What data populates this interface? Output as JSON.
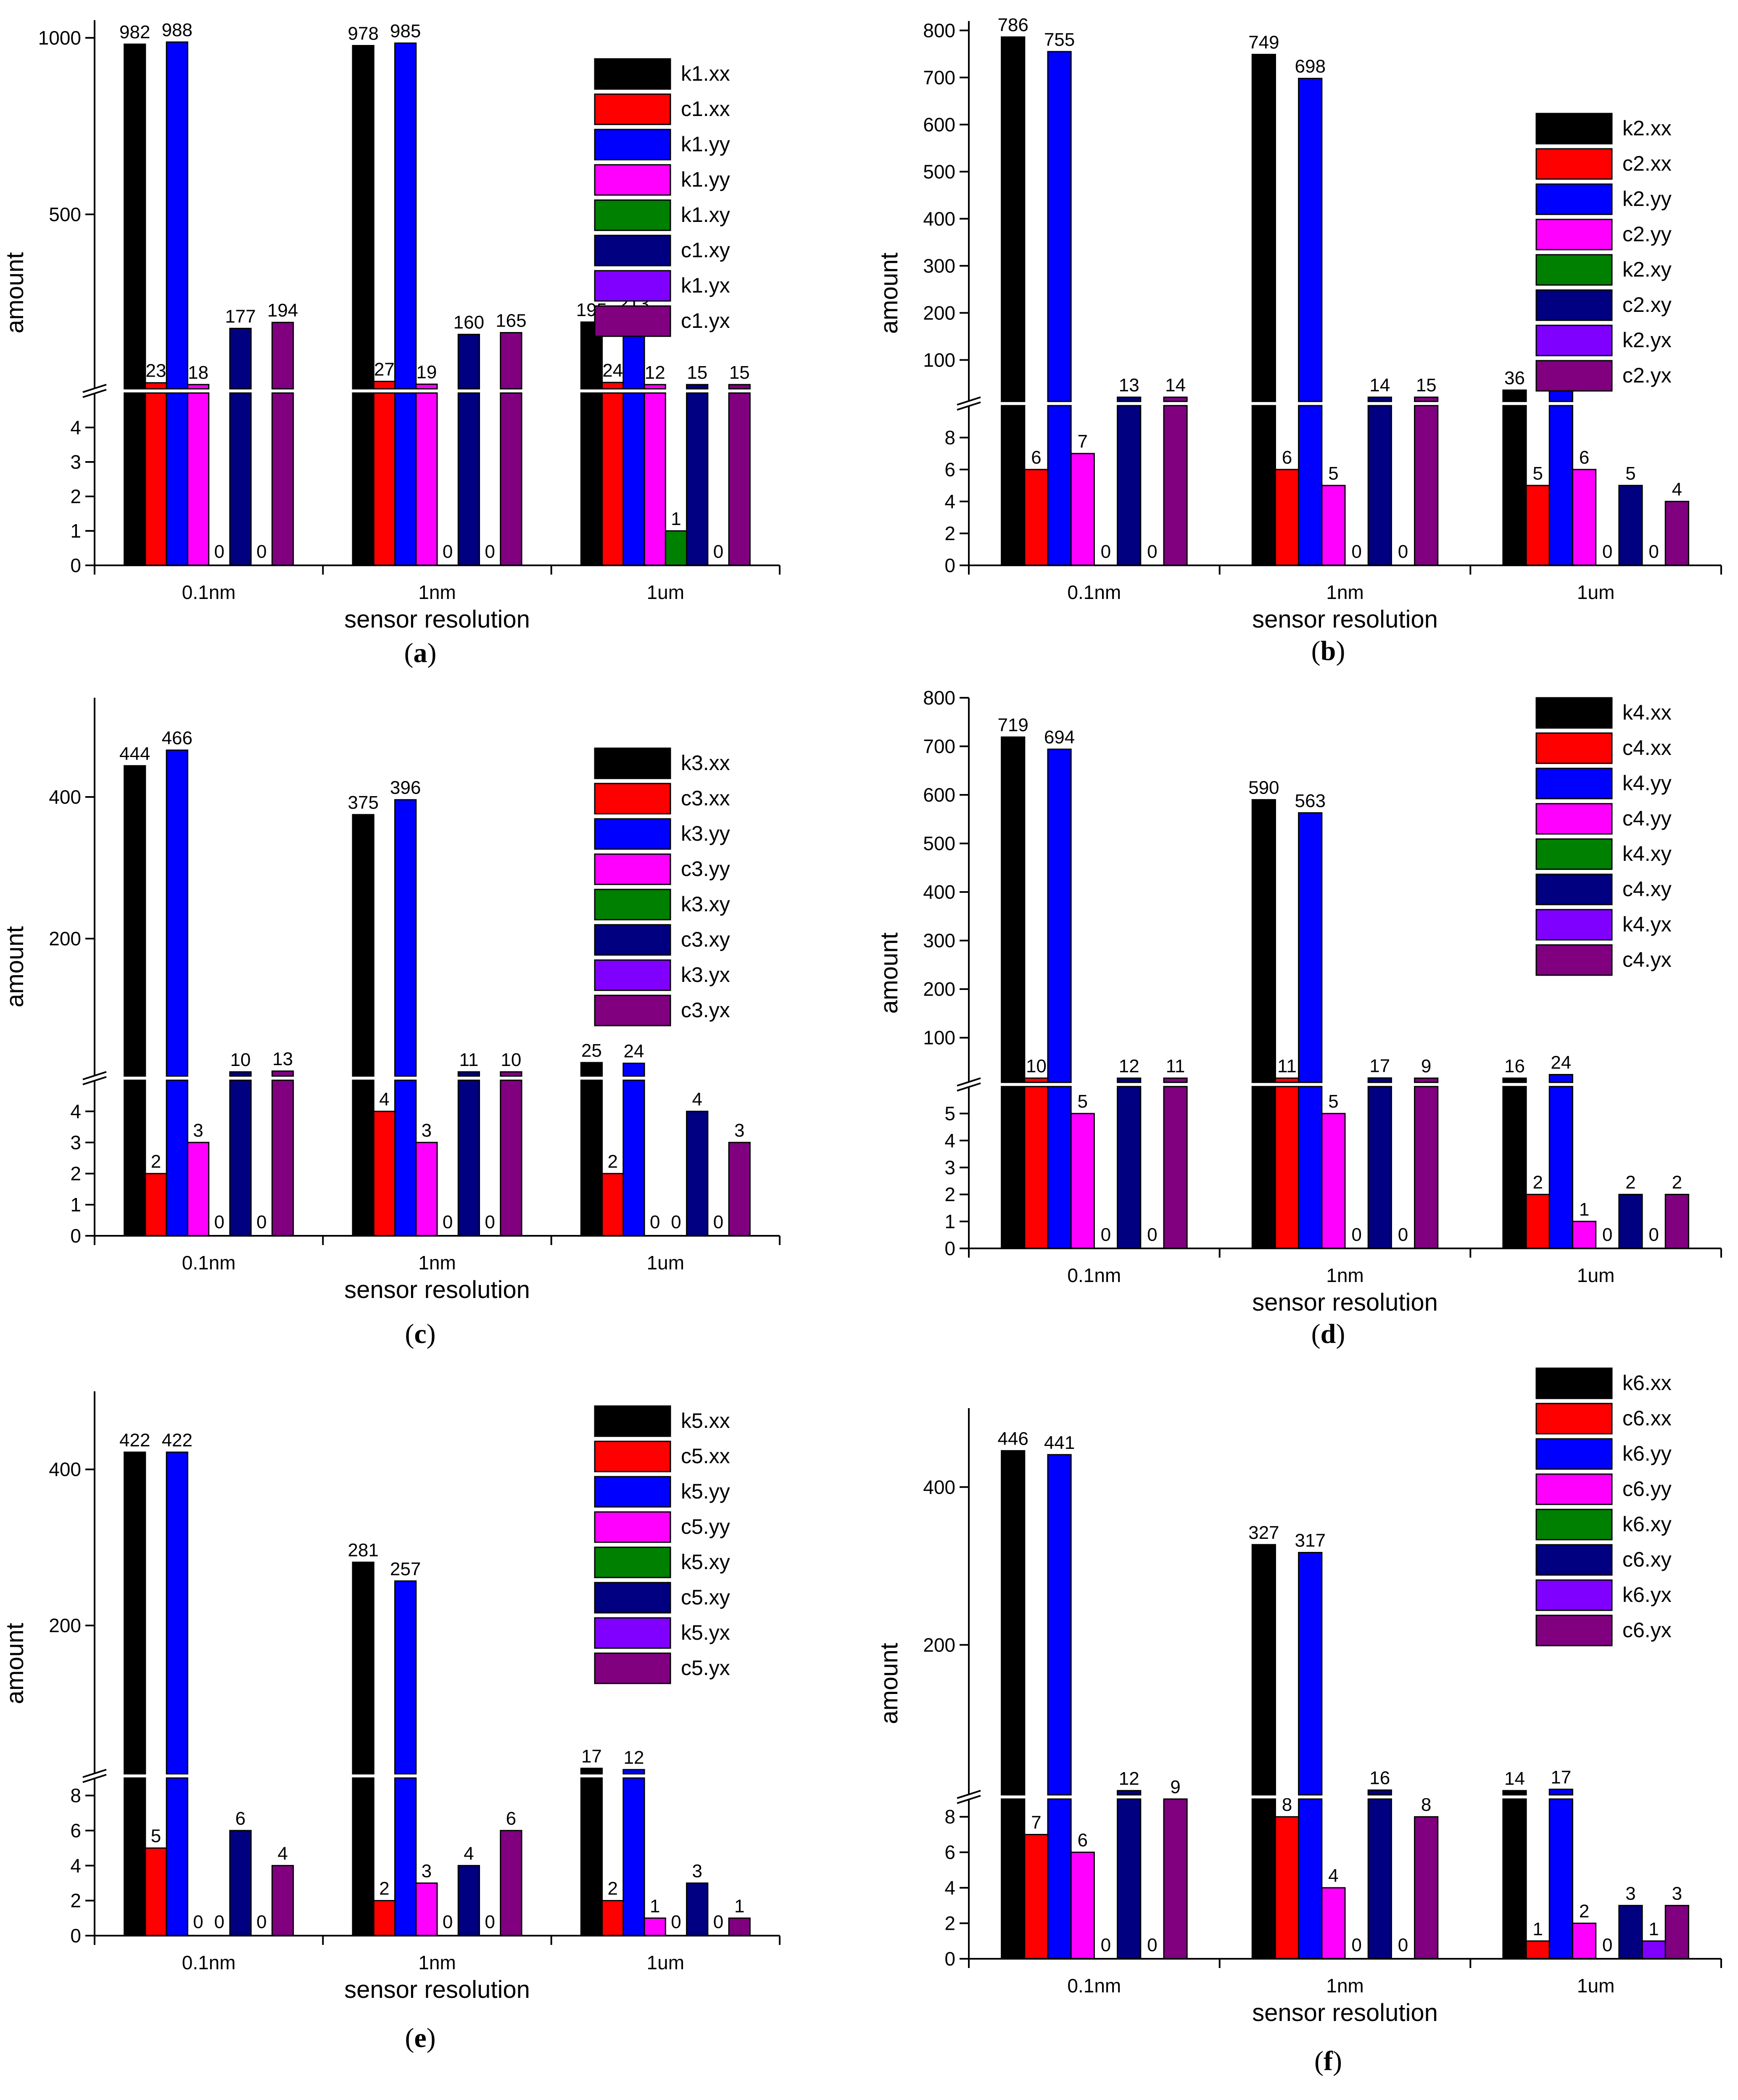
{
  "chart_data": [
    {
      "panel": "a",
      "type": "bar",
      "title": "",
      "xlabel": "sensor resolution",
      "ylabel": "amount",
      "categories": [
        "0.1nm",
        "1nm",
        "1um"
      ],
      "axis_break": {
        "lower_range": [
          0,
          5
        ],
        "lower_ticks": [
          0,
          1,
          2,
          3,
          4
        ],
        "upper_range": [
          6,
          1050
        ],
        "upper_ticks": [
          500,
          1000
        ]
      },
      "legend_placement": "top-right",
      "series": [
        {
          "name": "k1.xx",
          "values": [
            982,
            978,
            195
          ]
        },
        {
          "name": "c1.xx",
          "values": [
            23,
            27,
            24
          ]
        },
        {
          "name": "k1.yy",
          "values": [
            988,
            985,
            213
          ]
        },
        {
          "name": "k1.yy",
          "values": [
            18,
            19,
            12
          ]
        },
        {
          "name": "k1.xy",
          "values": [
            0,
            0,
            1
          ]
        },
        {
          "name": "c1.xy",
          "values": [
            177,
            160,
            15
          ]
        },
        {
          "name": "k1.yx",
          "values": [
            0,
            0,
            0
          ]
        },
        {
          "name": "c1.yx",
          "values": [
            194,
            165,
            15
          ]
        }
      ]
    },
    {
      "panel": "b",
      "type": "bar",
      "title": "",
      "xlabel": "sensor resolution",
      "ylabel": "amount",
      "categories": [
        "0.1nm",
        "1nm",
        "1um"
      ],
      "axis_break": {
        "lower_range": [
          0,
          10
        ],
        "lower_ticks": [
          0,
          2,
          4,
          6,
          8
        ],
        "upper_range": [
          12,
          820
        ],
        "upper_ticks": [
          100,
          200,
          300,
          400,
          500,
          600,
          700,
          800
        ]
      },
      "legend_placement": "top-right",
      "series": [
        {
          "name": "k2.xx",
          "values": [
            786,
            749,
            36
          ]
        },
        {
          "name": "c2.xx",
          "values": [
            6,
            6,
            5
          ]
        },
        {
          "name": "k2.yy",
          "values": [
            755,
            698,
            40
          ]
        },
        {
          "name": "c2.yy",
          "values": [
            7,
            5,
            6
          ]
        },
        {
          "name": "k2.xy",
          "values": [
            0,
            0,
            0
          ]
        },
        {
          "name": "c2.xy",
          "values": [
            13,
            14,
            5
          ]
        },
        {
          "name": "k2.yx",
          "values": [
            0,
            0,
            0
          ]
        },
        {
          "name": "c2.yx",
          "values": [
            14,
            15,
            4
          ]
        }
      ]
    },
    {
      "panel": "c",
      "type": "bar",
      "title": "",
      "xlabel": "sensor resolution",
      "ylabel": "amount",
      "categories": [
        "0.1nm",
        "1nm",
        "1um"
      ],
      "axis_break": {
        "lower_range": [
          0,
          5
        ],
        "lower_ticks": [
          0,
          1,
          2,
          3,
          4
        ],
        "upper_range": [
          6,
          540
        ],
        "upper_ticks": [
          200,
          400
        ]
      },
      "legend_placement": "top-right",
      "series": [
        {
          "name": "k3.xx",
          "values": [
            444,
            375,
            25
          ]
        },
        {
          "name": "c3.xx",
          "values": [
            2,
            4,
            2
          ]
        },
        {
          "name": "k3.yy",
          "values": [
            466,
            396,
            24
          ]
        },
        {
          "name": "c3.yy",
          "values": [
            3,
            3,
            0
          ]
        },
        {
          "name": "k3.xy",
          "values": [
            0,
            0,
            0
          ]
        },
        {
          "name": "c3.xy",
          "values": [
            10,
            11,
            4
          ]
        },
        {
          "name": "k3.yx",
          "values": [
            0,
            0,
            0
          ]
        },
        {
          "name": "c3.yx",
          "values": [
            13,
            10,
            3
          ]
        }
      ]
    },
    {
      "panel": "d",
      "type": "bar",
      "title": "",
      "xlabel": "sensor resolution",
      "ylabel": "amount",
      "categories": [
        "0.1nm",
        "1nm",
        "1um"
      ],
      "axis_break": {
        "lower_range": [
          0,
          6
        ],
        "lower_ticks": [
          0,
          1,
          2,
          3,
          4,
          5
        ],
        "upper_range": [
          8,
          800
        ],
        "upper_ticks": [
          100,
          200,
          300,
          400,
          500,
          600,
          700,
          800
        ]
      },
      "legend_placement": "top-right",
      "series": [
        {
          "name": "k4.xx",
          "values": [
            719,
            590,
            16
          ]
        },
        {
          "name": "c4.xx",
          "values": [
            10,
            11,
            2
          ]
        },
        {
          "name": "k4.yy",
          "values": [
            694,
            563,
            24
          ]
        },
        {
          "name": "c4.yy",
          "values": [
            5,
            5,
            1
          ]
        },
        {
          "name": "k4.xy",
          "values": [
            0,
            0,
            0
          ]
        },
        {
          "name": "c4.xy",
          "values": [
            12,
            17,
            2
          ]
        },
        {
          "name": "k4.yx",
          "values": [
            0,
            0,
            0
          ]
        },
        {
          "name": "c4.yx",
          "values": [
            11,
            9,
            2
          ]
        }
      ]
    },
    {
      "panel": "e",
      "type": "bar",
      "title": "",
      "xlabel": "sensor resolution",
      "ylabel": "amount",
      "categories": [
        "0.1nm",
        "1nm",
        "1um"
      ],
      "axis_break": {
        "lower_range": [
          0,
          9
        ],
        "lower_ticks": [
          0,
          2,
          4,
          6,
          8
        ],
        "upper_range": [
          10,
          500
        ],
        "upper_ticks": [
          200,
          400
        ]
      },
      "legend_placement": "top-right",
      "series": [
        {
          "name": "k5.xx",
          "values": [
            422,
            281,
            17
          ]
        },
        {
          "name": "c5.xx",
          "values": [
            5,
            2,
            2
          ]
        },
        {
          "name": "k5.yy",
          "values": [
            422,
            257,
            12
          ]
        },
        {
          "name": "c5.yy",
          "values": [
            0,
            3,
            1
          ]
        },
        {
          "name": "k5.xy",
          "values": [
            0,
            0,
            0
          ]
        },
        {
          "name": "c5.xy",
          "values": [
            6,
            4,
            3
          ]
        },
        {
          "name": "k5.yx",
          "values": [
            0,
            0,
            0
          ]
        },
        {
          "name": "c5.yx",
          "values": [
            4,
            6,
            1
          ]
        }
      ]
    },
    {
      "panel": "f",
      "type": "bar",
      "title": "",
      "xlabel": "sensor resolution",
      "ylabel": "amount",
      "categories": [
        "0.1nm",
        "1nm",
        "1um"
      ],
      "axis_break": {
        "lower_range": [
          0,
          9
        ],
        "lower_ticks": [
          0,
          2,
          4,
          6,
          8
        ],
        "upper_range": [
          10,
          500
        ],
        "upper_ticks": [
          200,
          400
        ]
      },
      "legend_placement": "top-right",
      "series": [
        {
          "name": "k6.xx",
          "values": [
            446,
            327,
            14
          ]
        },
        {
          "name": "c6.xx",
          "values": [
            7,
            8,
            1
          ]
        },
        {
          "name": "k6.yy",
          "values": [
            441,
            317,
            17
          ]
        },
        {
          "name": "c6.yy",
          "values": [
            6,
            4,
            2
          ]
        },
        {
          "name": "k6.xy",
          "values": [
            0,
            0,
            0
          ]
        },
        {
          "name": "c6.xy",
          "values": [
            12,
            16,
            3
          ]
        },
        {
          "name": "k6.yx",
          "values": [
            0,
            0,
            1
          ]
        },
        {
          "name": "c6.yx",
          "values": [
            9,
            8,
            3
          ]
        }
      ]
    }
  ],
  "series_colors": [
    "#000000",
    "#ff0000",
    "#0000ff",
    "#ff00ff",
    "#008000",
    "#000080",
    "#8000ff",
    "#800080"
  ],
  "captions": [
    "a",
    "b",
    "c",
    "d",
    "e",
    "f"
  ]
}
